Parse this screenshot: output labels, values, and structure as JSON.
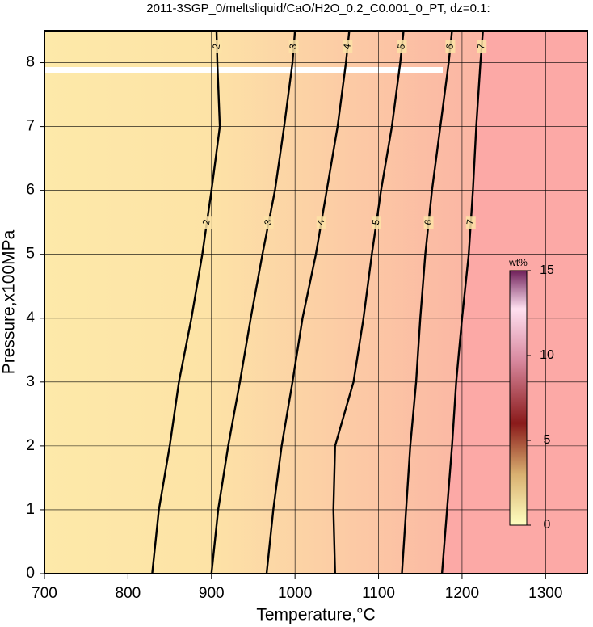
{
  "chart_data": {
    "type": "contour",
    "title": "2011-3SGP_0/meltsliquid/CaO/H2O_0.2_C0.001_0_PT, dz=0.1:",
    "x_label": "Temperature,°C",
    "y_label": "Pressure,x100MPa",
    "xlim": [
      700,
      1350
    ],
    "ylim": [
      0,
      8.5
    ],
    "xticks": [
      700,
      800,
      900,
      1000,
      1100,
      1200,
      1300
    ],
    "yticks": [
      0,
      1,
      2,
      3,
      4,
      5,
      6,
      7,
      8
    ],
    "grid": true,
    "y": [
      0,
      1,
      2,
      3,
      4,
      5,
      6,
      7,
      8,
      8.5
    ],
    "series": [
      {
        "name": "2",
        "color": "#000000",
        "values": [
          829,
          837,
          850,
          861,
          876,
          889,
          900,
          910,
          907,
          906
        ]
      },
      {
        "name": "3",
        "color": "#000000",
        "values": [
          900,
          908,
          920,
          934,
          947,
          961,
          976,
          987,
          997,
          1000
        ]
      },
      {
        "name": "4",
        "color": "#000000",
        "values": [
          966,
          974,
          984,
          997,
          1009,
          1025,
          1038,
          1051,
          1061,
          1065
        ]
      },
      {
        "name": "5",
        "color": "#000000",
        "values": [
          1048,
          1046,
          1048,
          1070,
          1082,
          1092,
          1103,
          1116,
          1126,
          1130
        ]
      },
      {
        "name": "6",
        "color": "#000000",
        "values": [
          1128,
          1133,
          1138,
          1145,
          1150,
          1156,
          1164,
          1174,
          1184,
          1188
        ]
      },
      {
        "name": "7",
        "color": "#000000",
        "values": [
          1176,
          1182,
          1188,
          1193,
          1200,
          1208,
          1213,
          1217,
          1222,
          1225
        ]
      }
    ],
    "colorbar": {
      "label": "wt%",
      "lim": [
        0,
        15
      ],
      "ticks": [
        0,
        5,
        10,
        15
      ]
    }
  }
}
